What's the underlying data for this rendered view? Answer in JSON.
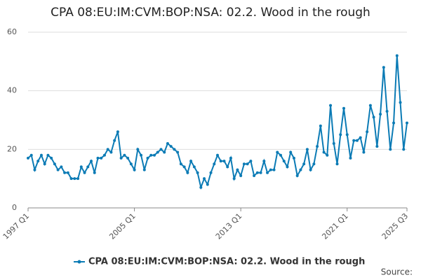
{
  "chart_data": {
    "type": "line",
    "title": "CPA 08:EU:IM:CVM:BOP:NSA: 02.2. Wood in the rough",
    "categories": [
      "1997 Q1",
      null,
      null,
      null,
      null,
      null,
      null,
      null,
      null,
      null,
      null,
      null,
      null,
      null,
      null,
      null,
      null,
      null,
      null,
      null,
      null,
      null,
      null,
      null,
      null,
      null,
      null,
      null,
      null,
      null,
      null,
      null,
      "2005 Q1",
      null,
      null,
      null,
      null,
      null,
      null,
      null,
      null,
      null,
      null,
      null,
      null,
      null,
      null,
      null,
      null,
      null,
      null,
      null,
      null,
      null,
      null,
      null,
      null,
      null,
      null,
      null,
      null,
      null,
      null,
      null,
      "2013 Q1",
      null,
      null,
      null,
      null,
      null,
      null,
      null,
      null,
      null,
      null,
      null,
      null,
      null,
      null,
      null,
      null,
      null,
      null,
      null,
      null,
      null,
      null,
      null,
      null,
      null,
      null,
      null,
      null,
      null,
      null,
      null,
      "2021 Q1",
      null,
      null,
      null,
      null,
      null,
      null,
      null,
      null,
      null,
      null,
      null,
      null,
      null,
      null,
      null,
      null,
      null,
      "2025 Q3"
    ],
    "series": [
      {
        "name": "CPA 08:EU:IM:CVM:BOP:NSA: 02.2. Wood in the rough",
        "color": "#0b7bb5",
        "values": [
          17,
          18,
          13,
          16,
          18,
          15,
          18,
          17,
          15,
          13,
          14,
          12,
          12,
          10,
          10,
          10,
          14,
          12,
          14,
          16,
          12,
          17,
          17,
          18,
          20,
          19,
          23,
          26,
          17,
          18,
          17,
          15,
          13,
          20,
          18,
          13,
          17,
          18,
          18,
          19,
          20,
          19,
          22,
          21,
          20,
          19,
          15,
          14,
          12,
          16,
          14,
          12,
          7,
          10,
          8,
          12,
          15,
          18,
          16,
          16,
          14,
          17,
          10,
          13,
          11,
          15,
          15,
          16,
          11,
          12,
          12,
          16,
          12,
          13,
          13,
          19,
          18,
          16,
          14,
          19,
          17,
          11,
          13,
          15,
          20,
          13,
          15,
          21,
          28,
          19,
          18,
          35,
          22,
          15,
          25,
          34,
          25,
          17,
          23,
          23,
          24,
          19,
          26,
          35,
          31,
          21,
          32,
          48,
          33,
          20,
          29,
          52,
          36,
          20,
          29
        ]
      }
    ],
    "ylim": [
      0,
      60
    ],
    "yticks": [
      0,
      20,
      40,
      60
    ],
    "grid": true,
    "legend": "bottom",
    "source": "Source:"
  }
}
